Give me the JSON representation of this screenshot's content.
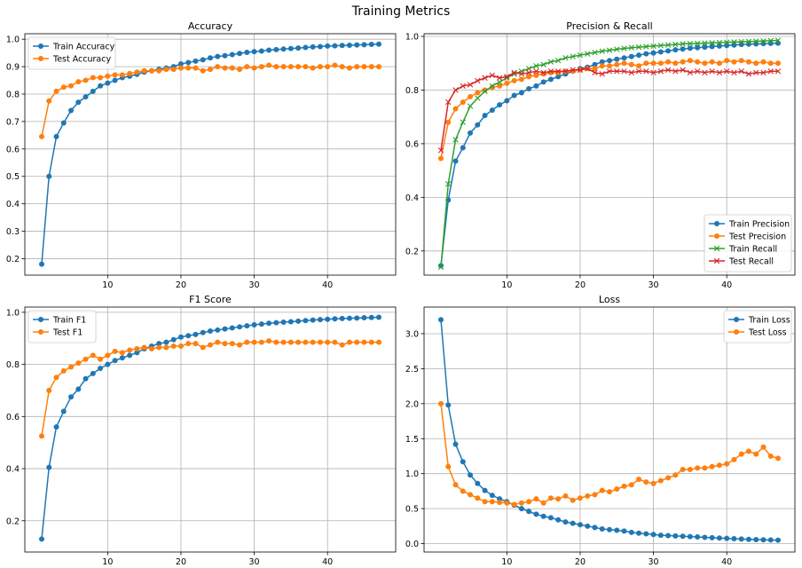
{
  "figure_title": "Training Metrics",
  "chart_data": [
    {
      "type": "line",
      "title": "Accuracy",
      "xlabel": "",
      "ylabel": "",
      "xlim": [
        -1.3,
        49.3
      ],
      "ylim": [
        0.14,
        1.02
      ],
      "xticks": [
        10,
        20,
        30,
        40
      ],
      "yticks": [
        0.2,
        0.3,
        0.4,
        0.5,
        0.6,
        0.7,
        0.8,
        0.9,
        1.0
      ],
      "ytick_labels": [
        "0.2",
        "0.3",
        "0.4",
        "0.5",
        "0.6",
        "0.7",
        "0.8",
        "0.9",
        "1.0"
      ],
      "grid": true,
      "legend": "top-left",
      "series": [
        {
          "name": "Train Accuracy",
          "color": "#1f77b4",
          "marker": "circle",
          "values": [
            0.18,
            0.5,
            0.645,
            0.695,
            0.74,
            0.77,
            0.79,
            0.81,
            0.83,
            0.84,
            0.85,
            0.86,
            0.865,
            0.872,
            0.88,
            0.885,
            0.89,
            0.895,
            0.9,
            0.91,
            0.915,
            0.92,
            0.925,
            0.932,
            0.937,
            0.94,
            0.944,
            0.948,
            0.952,
            0.955,
            0.957,
            0.96,
            0.962,
            0.964,
            0.966,
            0.968,
            0.97,
            0.972,
            0.973,
            0.975,
            0.976,
            0.977,
            0.978,
            0.979,
            0.98,
            0.981,
            0.982
          ]
        },
        {
          "name": "Test Accuracy",
          "color": "#ff7f0e",
          "marker": "circle",
          "values": [
            0.645,
            0.775,
            0.81,
            0.825,
            0.83,
            0.845,
            0.85,
            0.86,
            0.86,
            0.865,
            0.87,
            0.87,
            0.875,
            0.88,
            0.885,
            0.885,
            0.885,
            0.89,
            0.89,
            0.895,
            0.895,
            0.895,
            0.885,
            0.89,
            0.9,
            0.895,
            0.895,
            0.89,
            0.9,
            0.895,
            0.9,
            0.905,
            0.9,
            0.9,
            0.9,
            0.9,
            0.9,
            0.895,
            0.9,
            0.9,
            0.905,
            0.9,
            0.895,
            0.9,
            0.9,
            0.9,
            0.9
          ]
        }
      ]
    },
    {
      "type": "line",
      "title": "Precision & Recall",
      "xlabel": "",
      "ylabel": "",
      "xlim": [
        -1.3,
        49.3
      ],
      "ylim": [
        0.11,
        1.01
      ],
      "xticks": [
        10,
        20,
        30,
        40
      ],
      "yticks": [
        0.2,
        0.4,
        0.6,
        0.8,
        1.0
      ],
      "ytick_labels": [
        "0.2",
        "0.4",
        "0.6",
        "0.8",
        "1.0"
      ],
      "grid": true,
      "legend": "bottom-right",
      "series": [
        {
          "name": "Train Precision",
          "color": "#1f77b4",
          "marker": "circle",
          "values": [
            0.145,
            0.39,
            0.535,
            0.585,
            0.64,
            0.67,
            0.705,
            0.725,
            0.745,
            0.76,
            0.78,
            0.79,
            0.805,
            0.815,
            0.83,
            0.84,
            0.85,
            0.86,
            0.87,
            0.88,
            0.885,
            0.895,
            0.905,
            0.91,
            0.915,
            0.92,
            0.925,
            0.93,
            0.935,
            0.938,
            0.942,
            0.946,
            0.95,
            0.953,
            0.956,
            0.958,
            0.96,
            0.962,
            0.964,
            0.966,
            0.968,
            0.97,
            0.971,
            0.972,
            0.973,
            0.974,
            0.975
          ]
        },
        {
          "name": "Test Precision",
          "color": "#ff7f0e",
          "marker": "circle",
          "values": [
            0.545,
            0.68,
            0.73,
            0.755,
            0.775,
            0.79,
            0.8,
            0.81,
            0.815,
            0.825,
            0.835,
            0.84,
            0.85,
            0.855,
            0.86,
            0.865,
            0.865,
            0.87,
            0.87,
            0.875,
            0.88,
            0.88,
            0.89,
            0.89,
            0.895,
            0.9,
            0.895,
            0.89,
            0.9,
            0.9,
            0.9,
            0.905,
            0.9,
            0.905,
            0.91,
            0.905,
            0.9,
            0.905,
            0.9,
            0.91,
            0.905,
            0.91,
            0.905,
            0.9,
            0.905,
            0.9,
            0.9
          ]
        },
        {
          "name": "Train Recall",
          "color": "#2ca02c",
          "marker": "x",
          "values": [
            0.14,
            0.45,
            0.615,
            0.68,
            0.74,
            0.77,
            0.795,
            0.815,
            0.83,
            0.845,
            0.86,
            0.87,
            0.88,
            0.89,
            0.895,
            0.905,
            0.91,
            0.92,
            0.925,
            0.93,
            0.935,
            0.94,
            0.945,
            0.948,
            0.952,
            0.955,
            0.958,
            0.96,
            0.962,
            0.964,
            0.966,
            0.968,
            0.97,
            0.972,
            0.973,
            0.974,
            0.975,
            0.976,
            0.977,
            0.978,
            0.979,
            0.98,
            0.981,
            0.982,
            0.983,
            0.984,
            0.985
          ]
        },
        {
          "name": "Test Recall",
          "color": "#d62728",
          "marker": "x",
          "values": [
            0.575,
            0.755,
            0.8,
            0.815,
            0.82,
            0.835,
            0.845,
            0.855,
            0.845,
            0.85,
            0.865,
            0.86,
            0.865,
            0.87,
            0.865,
            0.87,
            0.87,
            0.87,
            0.875,
            0.875,
            0.88,
            0.865,
            0.86,
            0.87,
            0.87,
            0.87,
            0.865,
            0.87,
            0.87,
            0.865,
            0.87,
            0.875,
            0.87,
            0.875,
            0.865,
            0.87,
            0.865,
            0.87,
            0.865,
            0.87,
            0.865,
            0.87,
            0.86,
            0.865,
            0.865,
            0.87,
            0.87
          ]
        }
      ]
    },
    {
      "type": "line",
      "title": "F1 Score",
      "xlabel": "",
      "ylabel": "",
      "xlim": [
        -1.3,
        49.3
      ],
      "ylim": [
        0.08,
        1.02
      ],
      "xticks": [
        10,
        20,
        30,
        40
      ],
      "yticks": [
        0.2,
        0.4,
        0.6,
        0.8,
        1.0
      ],
      "ytick_labels": [
        "0.2",
        "0.4",
        "0.6",
        "0.8",
        "1.0"
      ],
      "grid": true,
      "legend": "top-left",
      "series": [
        {
          "name": "Train F1",
          "color": "#1f77b4",
          "marker": "circle",
          "values": [
            0.13,
            0.405,
            0.56,
            0.62,
            0.675,
            0.705,
            0.745,
            0.765,
            0.785,
            0.8,
            0.815,
            0.825,
            0.835,
            0.845,
            0.86,
            0.87,
            0.88,
            0.885,
            0.895,
            0.905,
            0.91,
            0.915,
            0.922,
            0.928,
            0.932,
            0.936,
            0.94,
            0.944,
            0.948,
            0.952,
            0.955,
            0.958,
            0.96,
            0.962,
            0.964,
            0.966,
            0.968,
            0.97,
            0.972,
            0.973,
            0.975,
            0.976,
            0.977,
            0.978,
            0.979,
            0.98,
            0.981
          ]
        },
        {
          "name": "Test F1",
          "color": "#ff7f0e",
          "marker": "circle",
          "values": [
            0.525,
            0.7,
            0.75,
            0.775,
            0.79,
            0.805,
            0.82,
            0.835,
            0.82,
            0.835,
            0.85,
            0.845,
            0.855,
            0.86,
            0.865,
            0.86,
            0.865,
            0.865,
            0.87,
            0.87,
            0.88,
            0.88,
            0.865,
            0.875,
            0.885,
            0.88,
            0.88,
            0.875,
            0.885,
            0.885,
            0.885,
            0.89,
            0.885,
            0.885,
            0.885,
            0.885,
            0.885,
            0.885,
            0.885,
            0.885,
            0.885,
            0.875,
            0.885,
            0.885,
            0.885,
            0.885,
            0.885
          ]
        }
      ]
    },
    {
      "type": "line",
      "title": "Loss",
      "xlabel": "",
      "ylabel": "",
      "xlim": [
        -1.3,
        49.3
      ],
      "ylim": [
        -0.12,
        3.38
      ],
      "xticks": [
        10,
        20,
        30,
        40
      ],
      "yticks": [
        0.0,
        0.5,
        1.0,
        1.5,
        2.0,
        2.5,
        3.0
      ],
      "ytick_labels": [
        "0.0",
        "0.5",
        "1.0",
        "1.5",
        "2.0",
        "2.5",
        "3.0"
      ],
      "grid": true,
      "legend": "top-right",
      "series": [
        {
          "name": "Train Loss",
          "color": "#1f77b4",
          "marker": "circle",
          "values": [
            3.2,
            1.98,
            1.42,
            1.17,
            0.98,
            0.86,
            0.76,
            0.69,
            0.64,
            0.6,
            0.55,
            0.5,
            0.46,
            0.42,
            0.39,
            0.37,
            0.34,
            0.31,
            0.29,
            0.27,
            0.25,
            0.23,
            0.21,
            0.2,
            0.19,
            0.18,
            0.16,
            0.15,
            0.14,
            0.13,
            0.12,
            0.115,
            0.11,
            0.105,
            0.1,
            0.095,
            0.09,
            0.085,
            0.08,
            0.075,
            0.07,
            0.065,
            0.06,
            0.058,
            0.055,
            0.052,
            0.05
          ]
        },
        {
          "name": "Test Loss",
          "color": "#ff7f0e",
          "marker": "circle",
          "values": [
            2.0,
            1.1,
            0.84,
            0.75,
            0.7,
            0.65,
            0.6,
            0.6,
            0.59,
            0.58,
            0.56,
            0.58,
            0.6,
            0.64,
            0.58,
            0.65,
            0.64,
            0.68,
            0.62,
            0.65,
            0.68,
            0.7,
            0.76,
            0.74,
            0.78,
            0.82,
            0.84,
            0.92,
            0.88,
            0.86,
            0.9,
            0.94,
            0.98,
            1.06,
            1.06,
            1.08,
            1.08,
            1.1,
            1.12,
            1.14,
            1.2,
            1.28,
            1.32,
            1.28,
            1.38,
            1.25,
            1.22
          ]
        }
      ]
    }
  ]
}
